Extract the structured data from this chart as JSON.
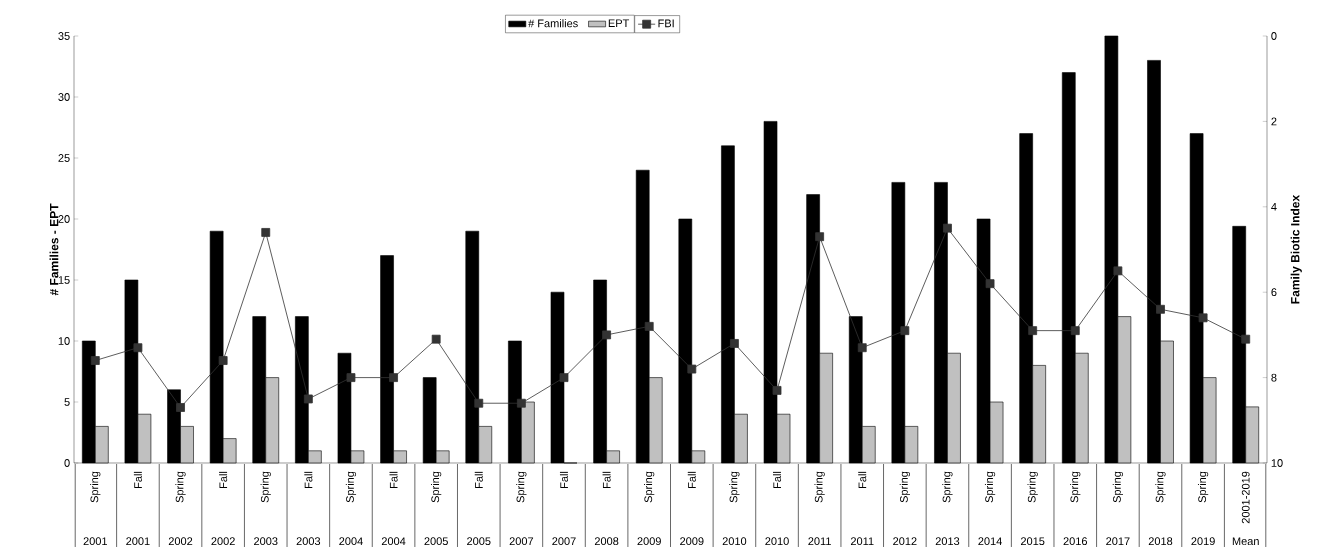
{
  "chart_data": {
    "type": "bar",
    "categories": [
      "Spring",
      "Fall",
      "Spring",
      "Fall",
      "Spring",
      "Fall",
      "Spring",
      "Fall",
      "Spring",
      "Fall",
      "Spring",
      "Fall",
      "Fall",
      "Spring",
      "Fall",
      "Spring",
      "Fall",
      "Spring",
      "Fall",
      "Spring",
      "Spring",
      "Spring",
      "Spring",
      "Spring",
      "Spring",
      "Spring",
      "Spring",
      "2001-2019"
    ],
    "annotations": [
      "2001",
      "2001",
      "2002",
      "2002",
      "2003",
      "2003",
      "2004",
      "2004",
      "2005",
      "2005",
      "2007",
      "2007",
      "2008",
      "2009",
      "2009",
      "2010",
      "2010",
      "2011",
      "2011",
      "2012",
      "2013",
      "2014",
      "2015",
      "2016",
      "2017",
      "2018",
      "2019",
      "Mean"
    ],
    "series": [
      {
        "name": "# Families",
        "color": "#000000",
        "values": [
          10,
          15,
          6,
          19,
          12,
          12,
          9,
          17,
          7,
          19,
          10,
          14,
          15,
          24,
          20,
          26,
          28,
          22,
          12,
          23,
          23,
          20,
          27,
          32,
          35,
          33,
          27,
          19.4
        ]
      },
      {
        "name": "EPT",
        "color": "#c0c0c0",
        "values": [
          3,
          4,
          3,
          2,
          7,
          1,
          1,
          1,
          1,
          3,
          5,
          0,
          1,
          7,
          1,
          4,
          4,
          9,
          3,
          3,
          9,
          5,
          8,
          9,
          12,
          10,
          7,
          4.6
        ]
      },
      {
        "name": "FBI",
        "type": "line",
        "axis": "y2",
        "color": "#333333",
        "values": [
          7.6,
          7.3,
          8.7,
          7.6,
          4.6,
          8.5,
          8.0,
          8.0,
          7.1,
          8.6,
          8.6,
          8.0,
          7.0,
          6.8,
          7.8,
          7.2,
          8.3,
          4.7,
          7.3,
          6.9,
          4.5,
          5.8,
          6.9,
          6.9,
          5.5,
          6.4,
          6.6,
          7.1
        ]
      }
    ],
    "ylabel": "# Families - EPT",
    "y2label": "Family  Biotic Index",
    "ylim": [
      0,
      35
    ],
    "yticks": [
      0,
      5,
      10,
      15,
      20,
      25,
      30,
      35
    ],
    "y2lim": [
      10,
      0
    ],
    "y2ticks": [
      0,
      2,
      4,
      6,
      8,
      10
    ],
    "legend": "top",
    "marker": "square",
    "line_style": "solid"
  }
}
